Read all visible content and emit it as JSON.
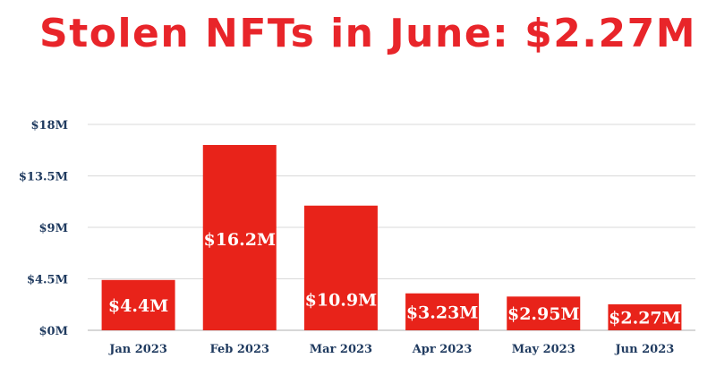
{
  "title": "Stolen NFTs in June: $2.27M",
  "colors": {
    "title": "#e8252a",
    "bar": "#e8231a",
    "ticks": "#1f3a5f"
  },
  "chart_data": {
    "type": "bar",
    "title": "Stolen NFTs in June: $2.27M",
    "categories": [
      "Jan 2023",
      "Feb 2023",
      "Mar 2023",
      "Apr 2023",
      "May 2023",
      "Jun 2023"
    ],
    "values": [
      4.4,
      16.2,
      10.9,
      3.23,
      2.95,
      2.27
    ],
    "data_labels": [
      "$4.4M",
      "$16.2M",
      "$10.9M",
      "$3.23M",
      "$2.95M",
      "$2.27M"
    ],
    "y_ticks": [
      0,
      4.5,
      9,
      13.5,
      18
    ],
    "y_tick_labels": [
      "$0M",
      "$4.5M",
      "$9M",
      "$13.5M",
      "$18M"
    ],
    "ylim": [
      0,
      18
    ],
    "xlabel": "",
    "ylabel": "",
    "grid": true
  }
}
